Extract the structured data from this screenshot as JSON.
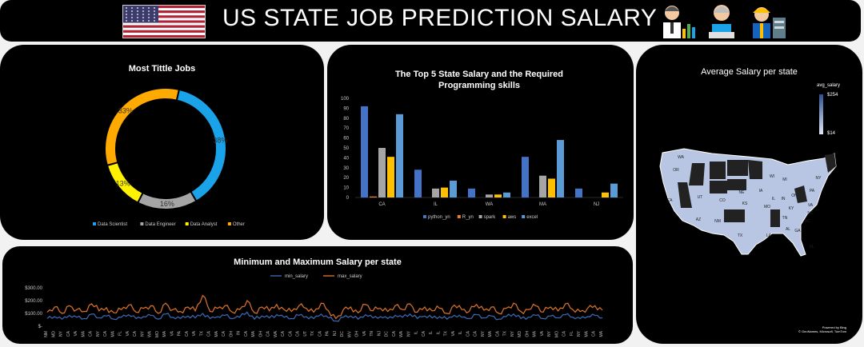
{
  "header": {
    "title": "US STATE JOB PREDICTION SALARY"
  },
  "colors": {
    "blue": "#1aa3e8",
    "gray": "#a5a5a5",
    "yellow": "#fff200",
    "orange": "#ffaa00"
  },
  "donut": {
    "chart_data": {
      "type": "pie",
      "title": "Most Tittle Jobs",
      "slices": [
        {
          "name": "Data Scientist",
          "value": 38,
          "label": "38%",
          "color": "#1aa3e8"
        },
        {
          "name": "Data Engineer",
          "value": 16,
          "label": "16%",
          "color": "#a5a5a5"
        },
        {
          "name": "Data Analyst",
          "value": 13,
          "label": "13%",
          "color": "#fff200"
        },
        {
          "name": "Other",
          "value": 33,
          "label": "33%",
          "color": "#ffaa00"
        }
      ],
      "legend_position": "bottom"
    }
  },
  "bar": {
    "chart_data": {
      "type": "bar",
      "title": "The  Top 5 State Salary and the Required Programming skills",
      "categories": [
        "CA",
        "IL",
        "WA",
        "MA",
        "NJ"
      ],
      "ylim": [
        0,
        100
      ],
      "yticks": [
        0,
        10,
        20,
        30,
        40,
        50,
        60,
        70,
        80,
        90,
        100
      ],
      "series": [
        {
          "name": "python_yn",
          "color": "#4472c4",
          "values": [
            92,
            28,
            9,
            41,
            9
          ]
        },
        {
          "name": "R_yn",
          "color": "#ed7d31",
          "values": [
            1,
            0,
            0,
            0,
            0
          ]
        },
        {
          "name": "spark",
          "color": "#a5a5a5",
          "values": [
            50,
            9,
            3,
            22,
            0
          ]
        },
        {
          "name": "aws",
          "color": "#ffc000",
          "values": [
            41,
            10,
            3,
            19,
            5
          ]
        },
        {
          "name": "excel",
          "color": "#5b9bd5",
          "values": [
            84,
            17,
            5,
            58,
            14
          ]
        }
      ],
      "legend_position": "bottom",
      "grid": false
    }
  },
  "map": {
    "title": "Average Salary per state",
    "legend_title": "avg_salary",
    "legend_max": "$254",
    "legend_min": "$14",
    "credit1": "Powered by Bing",
    "credit2": "© GeoNames, Microsoft, TomTom",
    "state_labels": [
      "WA",
      "OR",
      "ID",
      "UT",
      "CO",
      "AZ",
      "NM",
      "TX",
      "NE",
      "KS",
      "MN",
      "WI",
      "IA",
      "MO",
      "IL",
      "IN",
      "OH",
      "MI",
      "KY",
      "TN",
      "AL",
      "GA",
      "LA",
      "FL",
      "SC",
      "NC",
      "VA",
      "PA",
      "NY",
      "CA"
    ]
  },
  "line": {
    "chart_data": {
      "type": "line",
      "title": "Minimum and Maximum Salary per state",
      "yticks": [
        "$-",
        "$100.00",
        "$200.00",
        "$300.00"
      ],
      "ylim": [
        0,
        300
      ],
      "xlabels": [
        "NM",
        "MD",
        "NY",
        "CA",
        "VA",
        "MA",
        "CA",
        "NY",
        "CA",
        "MA",
        "FL",
        "VA",
        "CA",
        "NY",
        "WA",
        "MO",
        "MA",
        "VA",
        "PA",
        "CA",
        "VA",
        "TX",
        "CA",
        "MA",
        "CA",
        "OH",
        "IN",
        "CA",
        "MA",
        "OH",
        "CA",
        "WA",
        "CA",
        "CA",
        "CA",
        "UT",
        "TX",
        "CA",
        "PA",
        "NJ",
        "DC",
        "WV",
        "OH",
        "VA",
        "TN",
        "NJ",
        "DC",
        "CA",
        "WA",
        "NY",
        "IL",
        "CA",
        "IL",
        "IL",
        "TX",
        "VA",
        "IL",
        "CA",
        "CA",
        "NY",
        "MA",
        "CA",
        "TX",
        "NY",
        "MD",
        "OH",
        "MA",
        "VA",
        "NY",
        "MO",
        "CA",
        "FL",
        "NY",
        "MA",
        "CA",
        "MA"
      ],
      "series": [
        {
          "name": "min_salary",
          "color": "#4472c4",
          "values": [
            60,
            75,
            55,
            85,
            70,
            60,
            95,
            65,
            80,
            55,
            70,
            90,
            60,
            75,
            85,
            55,
            95,
            70,
            60,
            80,
            65,
            100,
            60,
            75,
            85,
            60,
            70,
            110,
            55,
            80,
            65,
            90,
            70,
            60,
            85,
            75,
            60,
            95,
            65,
            40,
            70,
            80,
            55,
            90,
            65,
            75,
            60,
            85,
            70,
            95,
            60,
            80,
            65,
            75,
            55,
            85,
            70,
            60,
            90,
            65,
            80,
            55,
            75,
            95,
            60,
            70,
            85,
            60,
            80,
            65,
            90,
            70,
            60,
            75,
            85,
            65
          ],
          "jitter": [
            0,
            12,
            -8,
            15,
            -5,
            10,
            -12,
            8,
            -6,
            14,
            -10,
            6,
            -4,
            12,
            -8,
            10,
            -14,
            6,
            -2,
            10,
            -8,
            12,
            -6,
            8,
            -10,
            14,
            -4,
            10,
            -8,
            6,
            -12,
            10,
            -6,
            8,
            -4,
            12,
            -10,
            6,
            -8,
            14,
            -6,
            10,
            -12,
            8,
            -4,
            10,
            -8,
            12,
            -6,
            14,
            -10,
            6,
            -8,
            10,
            -4,
            12,
            -6,
            8,
            -10,
            14,
            -4,
            10,
            -8,
            6,
            -12,
            10,
            -6,
            8,
            -4,
            12,
            -10,
            6,
            -8,
            14,
            -6,
            10
          ]
        },
        {
          "name": "max_salary",
          "color": "#ed7d31",
          "values": [
            110,
            150,
            100,
            160,
            130,
            115,
            175,
            120,
            145,
            105,
            130,
            165,
            110,
            140,
            160,
            100,
            180,
            130,
            115,
            150,
            120,
            240,
            115,
            140,
            160,
            110,
            130,
            200,
            105,
            150,
            120,
            170,
            130,
            115,
            160,
            140,
            110,
            180,
            120,
            60,
            130,
            150,
            105,
            170,
            120,
            140,
            115,
            160,
            130,
            175,
            110,
            150,
            120,
            140,
            100,
            165,
            130,
            115,
            170,
            125,
            150,
            100,
            140,
            180,
            115,
            130,
            160,
            110,
            150,
            120,
            175,
            130,
            115,
            140,
            160,
            125
          ]
        }
      ],
      "legend_position": "top"
    }
  }
}
